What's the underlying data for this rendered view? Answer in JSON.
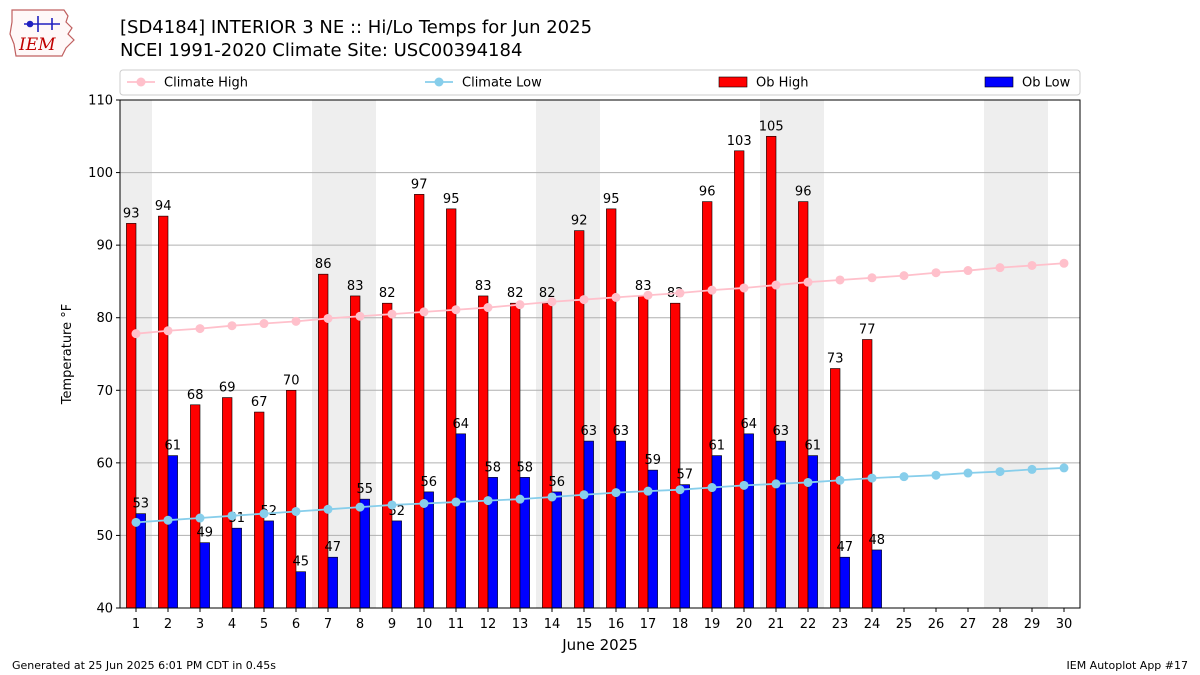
{
  "header": {
    "logo_text": "IEM",
    "title_line1": "[SD4184] INTERIOR 3 NE :: Hi/Lo Temps for Jun 2025",
    "title_line2": "NCEI 1991-2020 Climate Site: USC00394184"
  },
  "footer": {
    "generated": "Generated at 25 Jun 2025 6:01 PM CDT in 0.45s",
    "app": "IEM Autoplot App #17"
  },
  "colors": {
    "ob_high": "#ff0000",
    "ob_low": "#0000ff",
    "climate_high": "#ffc0cb",
    "climate_low": "#87ceeb",
    "weekend_band": "#eeeeee",
    "grid": "#b0b0b0"
  },
  "chart_data": {
    "type": "bar",
    "xlabel": "June 2025",
    "ylabel": "Temperature °F",
    "ylim": [
      40,
      110
    ],
    "yticks": [
      40,
      50,
      60,
      70,
      80,
      90,
      100,
      110
    ],
    "grid": "horizontal",
    "legend_placement": "top",
    "days": [
      1,
      2,
      3,
      4,
      5,
      6,
      7,
      8,
      9,
      10,
      11,
      12,
      13,
      14,
      15,
      16,
      17,
      18,
      19,
      20,
      21,
      22,
      23,
      24,
      25,
      26,
      27,
      28,
      29,
      30
    ],
    "weekend_day_groups": [
      [
        1
      ],
      [
        7,
        8
      ],
      [
        14,
        15
      ],
      [
        21,
        22
      ],
      [
        28,
        29
      ]
    ],
    "series": [
      {
        "name": "Ob High",
        "kind": "bar",
        "values": [
          93,
          94,
          68,
          69,
          67,
          70,
          86,
          83,
          82,
          97,
          95,
          83,
          82,
          82,
          92,
          95,
          83,
          82,
          96,
          103,
          105,
          96,
          73,
          77
        ]
      },
      {
        "name": "Ob Low",
        "kind": "bar",
        "values": [
          53,
          61,
          49,
          51,
          52,
          45,
          47,
          55,
          52,
          56,
          64,
          58,
          58,
          56,
          63,
          63,
          59,
          57,
          61,
          64,
          63,
          61,
          47,
          48
        ]
      },
      {
        "name": "Climate High",
        "kind": "line",
        "values": [
          77.8,
          78.2,
          78.5,
          78.9,
          79.2,
          79.5,
          79.9,
          80.2,
          80.5,
          80.8,
          81.1,
          81.4,
          81.8,
          82.2,
          82.5,
          82.8,
          83.1,
          83.4,
          83.8,
          84.1,
          84.5,
          84.9,
          85.2,
          85.5,
          85.8,
          86.2,
          86.5,
          86.9,
          87.2,
          87.5
        ]
      },
      {
        "name": "Climate Low",
        "kind": "line",
        "values": [
          51.8,
          52.1,
          52.4,
          52.7,
          53.0,
          53.3,
          53.6,
          53.9,
          54.2,
          54.4,
          54.6,
          54.8,
          55.0,
          55.3,
          55.6,
          55.9,
          56.1,
          56.3,
          56.6,
          56.9,
          57.1,
          57.3,
          57.6,
          57.9,
          58.1,
          58.3,
          58.6,
          58.8,
          59.1,
          59.3
        ]
      }
    ]
  }
}
